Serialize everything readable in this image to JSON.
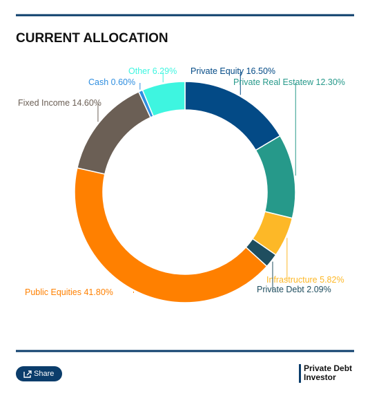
{
  "chart_data": {
    "type": "donut",
    "title": "CURRENT ALLOCATION",
    "categories": [
      "Private Equity",
      "Private Real Estatew",
      "Infrastructure",
      "Private Debt",
      "Public Equities",
      "Fixed Income",
      "Cash",
      "Other"
    ],
    "values": [
      16.5,
      12.3,
      5.82,
      2.09,
      41.8,
      14.6,
      0.6,
      6.29
    ],
    "value_labels": [
      "16.50%",
      "12.30%",
      "5.82%",
      "2.09%",
      "41.80%",
      "14.60%",
      "0.60%",
      "6.29%"
    ],
    "colors": [
      "#034a86",
      "#26998a",
      "#fdb827",
      "#1f4e5f",
      "#ff8000",
      "#6b5f55",
      "#2e8ee0",
      "#3ef5e0"
    ]
  },
  "share_button": "Share",
  "logo": [
    "Private Debt",
    "Investor"
  ]
}
